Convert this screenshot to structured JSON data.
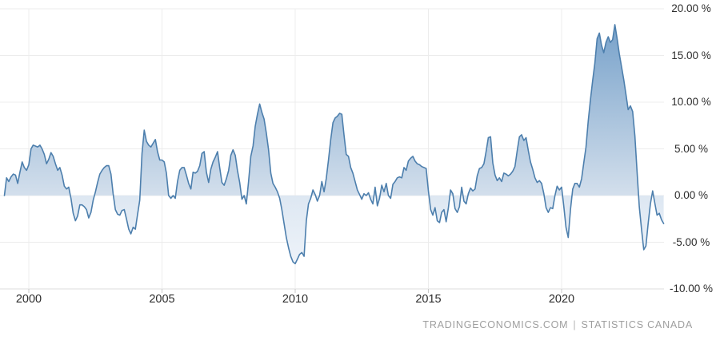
{
  "chart_data": {
    "type": "area",
    "unit": "%",
    "frequency": "monthly",
    "start": {
      "year": 1999,
      "month": 2
    },
    "values": [
      0.0,
      1.9,
      1.5,
      2.0,
      2.3,
      2.2,
      1.3,
      2.5,
      3.6,
      3.0,
      2.7,
      3.3,
      5.0,
      5.4,
      5.3,
      5.2,
      5.4,
      5.0,
      4.4,
      3.4,
      3.9,
      4.6,
      4.2,
      3.4,
      2.7,
      3.0,
      2.2,
      1.0,
      0.7,
      0.9,
      -0.3,
      -1.9,
      -2.7,
      -2.2,
      -1.0,
      -1.0,
      -1.2,
      -1.5,
      -2.4,
      -1.8,
      -0.5,
      0.4,
      1.4,
      2.3,
      2.7,
      3.0,
      3.2,
      3.2,
      2.3,
      0.2,
      -1.5,
      -2.0,
      -2.1,
      -1.6,
      -1.5,
      -2.5,
      -3.6,
      -4.1,
      -3.4,
      -3.6,
      -2.0,
      -0.5,
      4.5,
      7.0,
      5.8,
      5.4,
      5.2,
      5.6,
      6.0,
      4.7,
      3.8,
      3.8,
      3.6,
      2.4,
      0.0,
      -0.3,
      0.0,
      -0.3,
      1.5,
      2.7,
      3.0,
      3.0,
      2.2,
      1.3,
      0.7,
      2.5,
      2.4,
      2.6,
      3.2,
      4.5,
      4.7,
      2.5,
      1.4,
      2.8,
      3.6,
      4.1,
      4.7,
      3.0,
      1.4,
      1.1,
      1.8,
      2.7,
      4.3,
      4.9,
      4.3,
      2.7,
      1.4,
      -0.4,
      0.0,
      -0.9,
      1.5,
      4.2,
      5.3,
      7.4,
      8.7,
      9.8,
      8.9,
      8.2,
      6.7,
      4.9,
      2.4,
      1.3,
      0.9,
      0.4,
      -0.3,
      -1.5,
      -3.0,
      -4.5,
      -5.6,
      -6.5,
      -7.1,
      -7.3,
      -6.8,
      -6.3,
      -6.1,
      -6.5,
      -2.7,
      -0.9,
      -0.3,
      0.6,
      0.1,
      -0.6,
      0.0,
      1.5,
      0.4,
      1.8,
      3.8,
      6.0,
      7.8,
      8.3,
      8.5,
      8.8,
      8.7,
      6.5,
      4.4,
      4.2,
      3.0,
      2.4,
      1.5,
      0.6,
      0.1,
      -0.4,
      0.2,
      0.0,
      0.3,
      -0.4,
      -0.9,
      0.9,
      -1.1,
      -0.3,
      1.1,
      0.4,
      1.3,
      0.0,
      -0.3,
      1.2,
      1.5,
      1.9,
      2.0,
      1.9,
      3.0,
      2.7,
      3.7,
      4.0,
      4.2,
      3.7,
      3.4,
      3.3,
      3.1,
      3.0,
      2.9,
      0.5,
      -1.5,
      -2.1,
      -1.3,
      -2.7,
      -2.9,
      -1.8,
      -1.5,
      -2.8,
      -1.3,
      0.6,
      0.2,
      -1.4,
      -1.8,
      -1.2,
      0.9,
      -0.6,
      -0.9,
      0.2,
      0.8,
      0.5,
      0.7,
      2.1,
      2.9,
      3.0,
      3.4,
      4.7,
      6.2,
      6.3,
      3.5,
      2.2,
      1.6,
      1.9,
      1.5,
      2.4,
      2.3,
      2.1,
      2.3,
      2.6,
      3.1,
      4.8,
      6.3,
      6.5,
      5.9,
      6.2,
      4.8,
      3.6,
      2.8,
      1.9,
      1.4,
      1.6,
      1.3,
      0.2,
      -1.3,
      -1.8,
      -1.3,
      -1.4,
      0.0,
      1.0,
      0.6,
      0.9,
      -1.2,
      -3.4,
      -4.5,
      -1.5,
      0.7,
      1.3,
      1.3,
      0.9,
      1.8,
      3.5,
      5.2,
      8.0,
      10.3,
      12.3,
      14.2,
      16.8,
      17.4,
      16.1,
      15.3,
      16.4,
      17.0,
      16.4,
      16.7,
      18.3,
      16.8,
      15.2,
      13.8,
      12.4,
      10.8,
      9.2,
      9.6,
      9.0,
      6.4,
      2.6,
      -1.2,
      -3.6,
      -5.8,
      -5.4,
      -3.0,
      -0.9,
      0.5,
      -0.8,
      -2.1,
      -1.9,
      -2.6,
      -3.0
    ],
    "y_ticks": [
      {
        "value": 20,
        "label": "20.00 %"
      },
      {
        "value": 15,
        "label": "15.00 %"
      },
      {
        "value": 10,
        "label": "10.00 %"
      },
      {
        "value": 5,
        "label": "5.00 %"
      },
      {
        "value": 0,
        "label": "0.00 %"
      },
      {
        "value": -5,
        "label": "-5.00 %"
      },
      {
        "value": -10,
        "label": "-10.00 %"
      }
    ],
    "x_ticks": [
      {
        "year": 2000,
        "label": "2000"
      },
      {
        "year": 2005,
        "label": "2005"
      },
      {
        "year": 2010,
        "label": "2010"
      },
      {
        "year": 2015,
        "label": "2015"
      },
      {
        "year": 2020,
        "label": "2020"
      }
    ],
    "ylim": [
      -10,
      20
    ],
    "grid": true,
    "legend": false,
    "baseline": 0,
    "colors": {
      "line": "#4d7fad",
      "fill_top": "#6f9cc7",
      "fill_zero": "#d3dfec",
      "fill_neg_zero": "#dde7f2",
      "fill_neg_bottom": "#f5f8fc",
      "grid": "#ececec",
      "axis_line": "#dcdcdc",
      "tick": "#c8c8c8"
    }
  },
  "footer": {
    "source_left": "TRADINGECONOMICS.COM",
    "separator": "|",
    "source_right": "STATISTICS CANADA"
  }
}
